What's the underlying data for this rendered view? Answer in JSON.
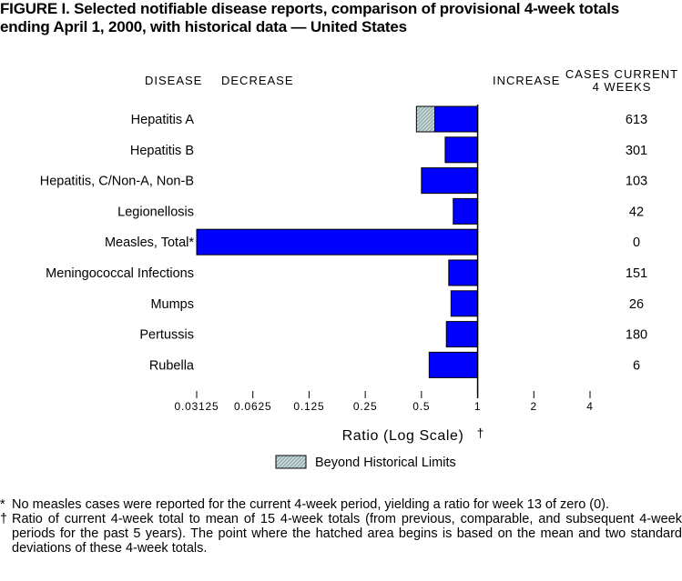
{
  "title": {
    "line1": "FIGURE I. Selected notifiable disease reports, comparison of provisional 4-week totals",
    "line2": "ending April 1, 2000, with historical data — United States"
  },
  "headers": {
    "disease": "DISEASE",
    "decrease": "DECREASE",
    "increase": "INCREASE",
    "cases_line1": "CASES CURRENT",
    "cases_line2": "4 WEEKS"
  },
  "chart_data": {
    "type": "bar",
    "orientation": "horizontal",
    "scale": "log2",
    "baseline": 1,
    "xlim": [
      0.03125,
      4
    ],
    "xlabel": "Ratio (Log Scale)",
    "xlabel_mark": "†",
    "xticks": [
      0.03125,
      0.0625,
      0.125,
      0.25,
      0.5,
      1,
      2,
      4
    ],
    "xtick_labels": [
      "0.03125",
      "0.0625",
      "0.125",
      "0.25",
      "0.5",
      "1",
      "2",
      "4"
    ],
    "categories": [
      "Hepatitis A",
      "Hepatitis B",
      "Hepatitis, C/Non-A, Non-B",
      "Legionellosis",
      "Measles, Total*",
      "Meningococcal Infections",
      "Mumps",
      "Pertussis",
      "Rubella"
    ],
    "values": [
      0.47,
      0.67,
      0.5,
      0.74,
      0.03125,
      0.7,
      0.72,
      0.68,
      0.55
    ],
    "beyond_historical_limits": [
      0.59,
      null,
      null,
      null,
      null,
      null,
      null,
      null,
      null
    ],
    "cases": [
      "613",
      "301",
      "103",
      "42",
      "0",
      "151",
      "26",
      "180",
      "6"
    ],
    "legend": {
      "label": "Beyond Historical Limits",
      "placement": "bottom-center"
    },
    "colors": {
      "bar": "#0000ff",
      "beyond": "#c8d8d8",
      "hatch": "#8aa0a0"
    }
  },
  "footnotes": [
    {
      "mark": "*",
      "text": "No measles cases were reported for the current 4-week period, yielding a ratio for week 13 of zero (0)."
    },
    {
      "mark": "†",
      "text": "Ratio of current 4-week total to mean of 15 4-week totals (from previous, comparable, and subsequent 4-week periods for the past 5 years). The point where the hatched area begins is based on the mean and two standard deviations of these 4-week totals."
    }
  ]
}
